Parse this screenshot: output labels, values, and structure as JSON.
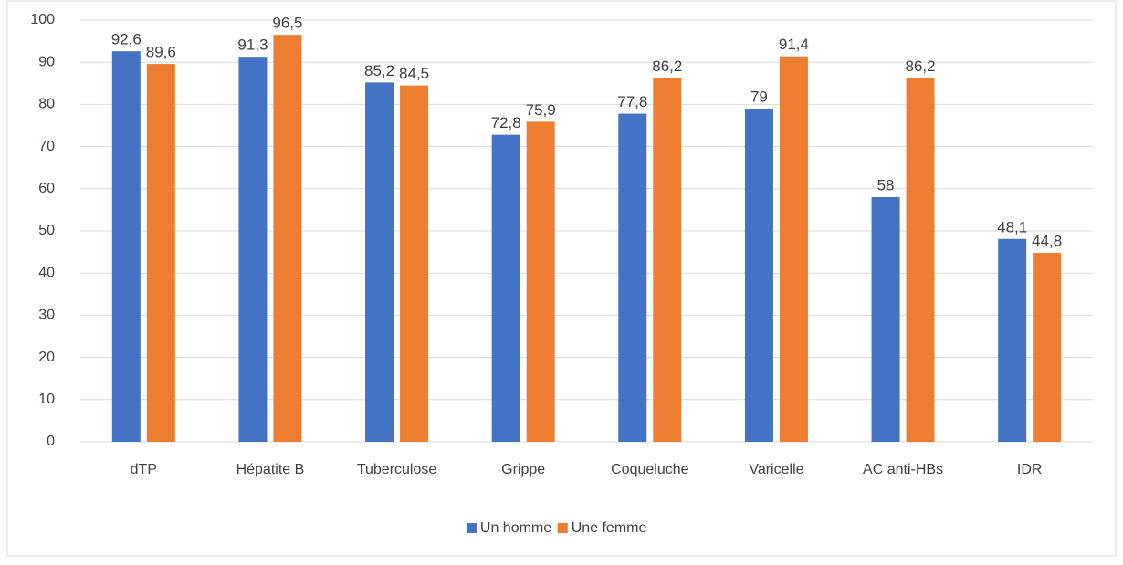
{
  "chart_data": {
    "type": "bar",
    "categories": [
      "dTP",
      "Hépatite B",
      "Tuberculose",
      "Grippe",
      "Coqueluche",
      "Varicelle",
      "AC anti-HBs",
      "IDR"
    ],
    "series": [
      {
        "name": "Un homme",
        "color": "#4472c4",
        "values": [
          92.6,
          91.3,
          85.2,
          72.8,
          77.8,
          79,
          58,
          48.1
        ],
        "value_labels": [
          "92,6",
          "91,3",
          "85,2",
          "72,8",
          "77,8",
          "79",
          "58",
          "48,1"
        ]
      },
      {
        "name": "Une femme",
        "color": "#ed7d31",
        "values": [
          89.6,
          96.5,
          84.5,
          75.9,
          86.2,
          91.4,
          86.2,
          44.8
        ],
        "value_labels": [
          "89,6",
          "96,5",
          "84,5",
          "75,9",
          "86,2",
          "91,4",
          "86,2",
          "44,8"
        ]
      }
    ],
    "ylim": [
      0,
      100
    ],
    "yticks": [
      0,
      10,
      20,
      30,
      40,
      50,
      60,
      70,
      80,
      90,
      100
    ],
    "grid": true,
    "legend": "bottom"
  }
}
